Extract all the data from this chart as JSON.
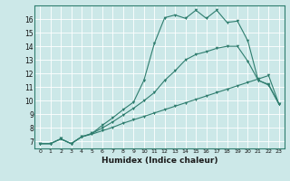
{
  "xlabel": "Humidex (Indice chaleur)",
  "bg_color": "#cce8e8",
  "grid_color": "#ff0000",
  "line_color": "#2e7d6e",
  "xlim": [
    -0.5,
    23.5
  ],
  "ylim": [
    6.5,
    17.0
  ],
  "yticks": [
    7,
    8,
    9,
    10,
    11,
    12,
    13,
    14,
    15,
    16
  ],
  "xticks": [
    0,
    1,
    2,
    3,
    4,
    5,
    6,
    7,
    8,
    9,
    10,
    11,
    12,
    13,
    14,
    15,
    16,
    17,
    18,
    19,
    20,
    21,
    22,
    23
  ],
  "curve1_x": [
    0,
    1,
    2,
    3,
    4,
    5,
    6,
    7,
    8,
    9,
    10,
    11,
    12,
    13,
    14,
    15,
    16,
    17,
    18,
    19,
    20,
    21,
    22,
    23
  ],
  "curve1_y": [
    6.85,
    6.85,
    7.2,
    6.85,
    7.35,
    7.55,
    7.8,
    8.05,
    8.35,
    8.6,
    8.85,
    9.1,
    9.35,
    9.6,
    9.85,
    10.1,
    10.35,
    10.6,
    10.85,
    11.1,
    11.35,
    11.6,
    11.85,
    9.75
  ],
  "curve2_x": [
    0,
    1,
    2,
    3,
    4,
    5,
    6,
    7,
    8,
    9,
    10,
    11,
    12,
    13,
    14,
    15,
    16,
    17,
    18,
    19,
    20,
    21,
    22,
    23
  ],
  "curve2_y": [
    6.85,
    6.85,
    7.2,
    6.85,
    7.35,
    7.6,
    8.0,
    8.45,
    8.95,
    9.45,
    10.0,
    10.6,
    11.5,
    12.2,
    13.0,
    13.4,
    13.6,
    13.85,
    14.0,
    14.0,
    12.9,
    11.5,
    11.2,
    9.75
  ],
  "curve3_x": [
    0,
    1,
    2,
    3,
    4,
    5,
    6,
    7,
    8,
    9,
    10,
    11,
    12,
    13,
    14,
    15,
    16,
    17,
    18,
    19,
    20,
    21,
    22,
    23
  ],
  "curve3_y": [
    6.85,
    6.85,
    7.2,
    6.85,
    7.35,
    7.6,
    8.2,
    8.75,
    9.35,
    9.9,
    11.5,
    14.2,
    16.1,
    16.3,
    16.05,
    16.65,
    16.05,
    16.65,
    15.75,
    15.85,
    14.4,
    11.5,
    11.15,
    9.75
  ]
}
